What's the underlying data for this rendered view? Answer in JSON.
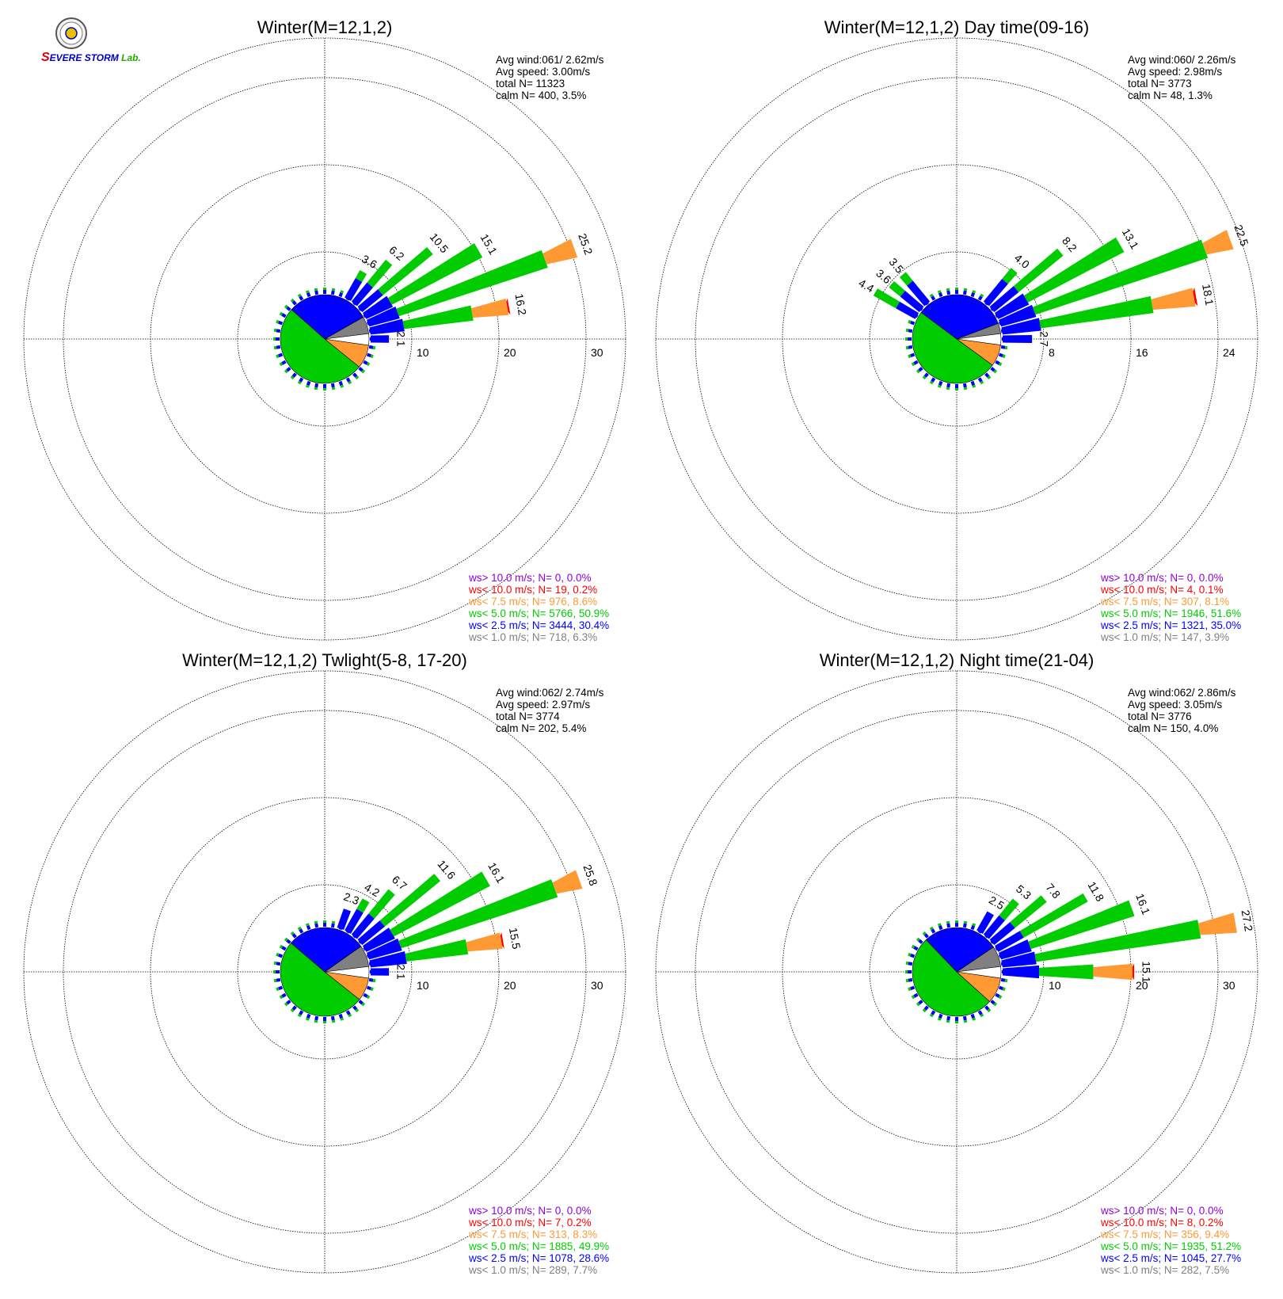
{
  "lab_logo": {
    "text": "SEVERE STORM Lab.",
    "colors": {
      "seal_ring": "#555555",
      "seal_fill": "#f4f4f8",
      "red": "#e00000",
      "blue": "#0000cc",
      "green": "#22aa00"
    }
  },
  "colors": {
    "ws_gt_10": "#9400d3",
    "ws_lt_10": "#ff0000",
    "ws_lt_7_5": "#ff9933",
    "ws_lt_5_0": "#00cc00",
    "ws_lt_2_5": "#0000ff",
    "ws_lt_1_0": "#808080",
    "ring": "#000000",
    "text": "#000000"
  },
  "chart_data": [
    {
      "type": "wind-rose",
      "title": "Winter(M=12,1,2)",
      "ring_labels": [
        "10",
        "20",
        "30"
      ],
      "rmax": 35,
      "grid": true,
      "stats": {
        "avg_wind": "Avg wind:061/ 2.62m/s",
        "avg_speed": "Avg speed: 3.00m/s",
        "total_n": "total N=      11323",
        "calm_n": "calm N=    400,   3.5%"
      },
      "legend": [
        {
          "key": "ws_gt_10",
          "text": "ws> 10.0 m/s; N=      0,  0.0%"
        },
        {
          "key": "ws_lt_10",
          "text": "ws< 10.0 m/s; N=     19,  0.2%"
        },
        {
          "key": "ws_lt_7_5",
          "text": "ws<  7.5 m/s; N=    976,  8.6%"
        },
        {
          "key": "ws_lt_5_0",
          "text": "ws<  5.0 m/s; N=  5766, 50.9%"
        },
        {
          "key": "ws_lt_2_5",
          "text": "ws<  2.5 m/s; N=  3444, 30.4%"
        },
        {
          "key": "ws_lt_1_0",
          "text": "ws<  1.0 m/s; N=    718,  6.3%"
        }
      ],
      "pie_percent": [
        6.3,
        30.4,
        50.9,
        8.6,
        0.2,
        0.0
      ],
      "bars": [
        {
          "dir": 30,
          "total": 3.6,
          "label": "3.6"
        },
        {
          "dir": 40,
          "total": 6.2,
          "label": "6.2"
        },
        {
          "dir": 50,
          "total": 10.5,
          "label": "10.5"
        },
        {
          "dir": 60,
          "total": 15.1,
          "label": "15.1"
        },
        {
          "dir": 70,
          "total": 25.2,
          "label": "25.2",
          "orange": 3.6
        },
        {
          "dir": 80,
          "total": 16.2,
          "label": "16.2",
          "orange": 4.1,
          "red": 0.2
        },
        {
          "dir": 90,
          "total": 2.1,
          "label": "2.1"
        }
      ]
    },
    {
      "type": "wind-rose",
      "title": "Winter(M=12,1,2) Day time(09-16)",
      "ring_labels": [
        "8",
        "16",
        "24"
      ],
      "rmax": 28,
      "grid": true,
      "stats": {
        "avg_wind": "Avg wind:060/ 2.26m/s",
        "avg_speed": "Avg speed: 2.98m/s",
        "total_n": "total N=       3773",
        "calm_n": "calm N=     48,   1.3%"
      },
      "legend": [
        {
          "key": "ws_gt_10",
          "text": "ws> 10.0 m/s; N=      0,  0.0%"
        },
        {
          "key": "ws_lt_10",
          "text": "ws< 10.0 m/s; N=      4,  0.1%"
        },
        {
          "key": "ws_lt_7_5",
          "text": "ws<  7.5 m/s; N=    307,  8.1%"
        },
        {
          "key": "ws_lt_5_0",
          "text": "ws<  5.0 m/s; N=  1946, 51.6%"
        },
        {
          "key": "ws_lt_2_5",
          "text": "ws<  2.5 m/s; N=  1321, 35.0%"
        },
        {
          "key": "ws_lt_1_0",
          "text": "ws<  1.0 m/s; N=    147,  3.9%"
        }
      ],
      "pie_percent": [
        3.9,
        35.0,
        51.6,
        8.1,
        0.1,
        0.0
      ],
      "bars": [
        {
          "dir": 300,
          "total": 4.4,
          "label": "4.4"
        },
        {
          "dir": 310,
          "total": 3.6,
          "label": "3.6"
        },
        {
          "dir": 320,
          "total": 3.5,
          "label": "3.5"
        },
        {
          "dir": 40,
          "total": 4.0,
          "label": "4.0"
        },
        {
          "dir": 50,
          "total": 8.2,
          "label": "8.2"
        },
        {
          "dir": 60,
          "total": 13.1,
          "label": "13.1"
        },
        {
          "dir": 70,
          "total": 22.5,
          "label": "22.5",
          "orange": 2.5
        },
        {
          "dir": 80,
          "total": 18.1,
          "label": "18.1",
          "orange": 3.9,
          "red": 0.2
        },
        {
          "dir": 90,
          "total": 2.7,
          "label": "2.7"
        }
      ]
    },
    {
      "type": "wind-rose",
      "title": "Winter(M=12,1,2) Twlight(5-8, 17-20)",
      "ring_labels": [
        "10",
        "20",
        "30"
      ],
      "rmax": 35,
      "grid": true,
      "stats": {
        "avg_wind": "Avg wind:062/ 2.74m/s",
        "avg_speed": "Avg speed: 2.97m/s",
        "total_n": "total N=       3774",
        "calm_n": "calm N=    202,   5.4%"
      },
      "legend": [
        {
          "key": "ws_gt_10",
          "text": "ws> 10.0 m/s; N=      0,  0.0%"
        },
        {
          "key": "ws_lt_10",
          "text": "ws< 10.0 m/s; N=      7,  0.2%"
        },
        {
          "key": "ws_lt_7_5",
          "text": "ws<  7.5 m/s; N=    313,  8.3%"
        },
        {
          "key": "ws_lt_5_0",
          "text": "ws<  5.0 m/s; N=  1885, 49.9%"
        },
        {
          "key": "ws_lt_2_5",
          "text": "ws<  2.5 m/s; N=  1078, 28.6%"
        },
        {
          "key": "ws_lt_1_0",
          "text": "ws<  1.0 m/s; N=    289,  7.7%"
        }
      ],
      "pie_percent": [
        7.7,
        28.6,
        49.9,
        8.3,
        0.2,
        0.0
      ],
      "bars": [
        {
          "dir": 20,
          "total": 2.3,
          "label": "2.3"
        },
        {
          "dir": 30,
          "total": 4.2,
          "label": "4.2"
        },
        {
          "dir": 40,
          "total": 6.7,
          "label": "6.7"
        },
        {
          "dir": 50,
          "total": 11.6,
          "label": "11.6"
        },
        {
          "dir": 60,
          "total": 16.1,
          "label": "16.1"
        },
        {
          "dir": 70,
          "total": 25.8,
          "label": "25.8",
          "orange": 3.0
        },
        {
          "dir": 80,
          "total": 15.5,
          "label": "15.5",
          "orange": 4.0,
          "red": 0.2
        },
        {
          "dir": 90,
          "total": 2.1,
          "label": "2.1"
        }
      ]
    },
    {
      "type": "wind-rose",
      "title": "Winter(M=12,1,2) Night time(21-04)",
      "ring_labels": [
        "10",
        "20",
        "30"
      ],
      "rmax": 35,
      "grid": true,
      "stats": {
        "avg_wind": "Avg wind:062/ 2.86m/s",
        "avg_speed": "Avg speed: 3.05m/s",
        "total_n": "total N=       3776",
        "calm_n": "calm N=    150,   4.0%"
      },
      "legend": [
        {
          "key": "ws_gt_10",
          "text": "ws> 10.0 m/s; N=      0,  0.0%"
        },
        {
          "key": "ws_lt_10",
          "text": "ws< 10.0 m/s; N=      8,  0.2%"
        },
        {
          "key": "ws_lt_7_5",
          "text": "ws<  7.5 m/s; N=    356,  9.4%"
        },
        {
          "key": "ws_lt_5_0",
          "text": "ws<  5.0 m/s; N=  1935, 51.2%"
        },
        {
          "key": "ws_lt_2_5",
          "text": "ws<  2.5 m/s; N=  1045, 27.7%"
        },
        {
          "key": "ws_lt_1_0",
          "text": "ws<  1.0 m/s; N=    282,  7.5%"
        }
      ],
      "pie_percent": [
        7.5,
        27.7,
        51.2,
        9.4,
        0.2,
        0.0
      ],
      "bars": [
        {
          "dir": 30,
          "total": 2.5,
          "label": "2.5"
        },
        {
          "dir": 40,
          "total": 5.3,
          "label": "5.3"
        },
        {
          "dir": 50,
          "total": 7.8,
          "label": "7.8"
        },
        {
          "dir": 60,
          "total": 11.8,
          "label": "11.8"
        },
        {
          "dir": 70,
          "total": 16.1,
          "label": "16.1"
        },
        {
          "dir": 80,
          "total": 27.2,
          "label": "27.2",
          "orange": 4.2
        },
        {
          "dir": 90,
          "total": 15.1,
          "label": "15.1",
          "orange": 4.5,
          "red": 0.2
        }
      ]
    }
  ]
}
